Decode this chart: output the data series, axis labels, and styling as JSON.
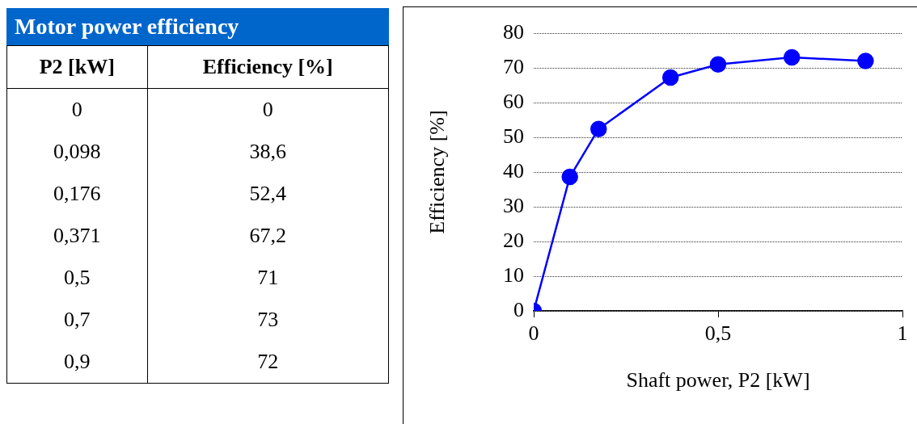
{
  "chart_data": [
    {
      "type": "other",
      "title": "Motor power efficiency",
      "annotations": [
        "P2 [kW]",
        "Efficiency [%]",
        "0",
        "0",
        "0,098",
        "38,6",
        "0,176",
        "52,4",
        "0,371",
        "67,2",
        "0,5",
        "71",
        "0,7",
        "73",
        "0,9",
        "72"
      ]
    },
    {
      "type": "line",
      "xlabel": "Shaft power, P2 [kW]",
      "ylabel": "Efficiency [%]",
      "x": [
        0,
        0.098,
        0.176,
        0.371,
        0.5,
        0.7,
        0.9
      ],
      "series": [
        {
          "color": "#0000ff",
          "values": [
            0,
            38.6,
            52.4,
            67.2,
            71,
            73,
            72
          ]
        }
      ],
      "xlim": [
        0,
        1
      ],
      "xticks": [
        0,
        {
          "value": 0.5,
          "label": "0,5"
        },
        1
      ],
      "ylim": [
        0,
        80
      ],
      "yticks": [
        0,
        10,
        20,
        30,
        40,
        50,
        60,
        70,
        80
      ],
      "grid": "y",
      "legend": false,
      "marker": "circle",
      "line_style": "solid"
    }
  ]
}
